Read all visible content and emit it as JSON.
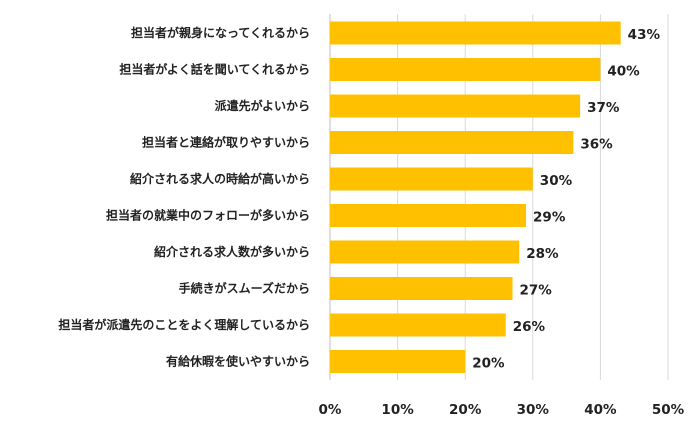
{
  "chart_data": {
    "type": "bar",
    "orientation": "horizontal",
    "title": "",
    "xlabel": "",
    "ylabel": "",
    "categories": [
      "担当者が親身になってくれるから",
      "担当者がよく話を聞いてくれるから",
      "派遣先がよいから",
      "担当者と連絡が取りやすいから",
      "紹介される求人の時給が高いから",
      "担当者の就業中のフォローが多いから",
      "紹介される求人数が多いから",
      "手続きがスムーズだから",
      "担当者が派遣先のことをよく理解しているから",
      "有給休暇を使いやすいから"
    ],
    "values": [
      43,
      40,
      37,
      36,
      30,
      29,
      28,
      27,
      26,
      20
    ],
    "value_labels": [
      "43%",
      "40%",
      "37%",
      "36%",
      "30%",
      "29%",
      "28%",
      "27%",
      "26%",
      "20%"
    ],
    "xlim": [
      0,
      50
    ],
    "x_ticks": [
      0,
      10,
      20,
      30,
      40,
      50
    ],
    "x_tick_labels": [
      "0%",
      "10%",
      "20%",
      "30%",
      "40%",
      "50%"
    ],
    "grid": "vertical",
    "bar_color": "#FFC000",
    "grid_color": "#D9D9D9"
  }
}
